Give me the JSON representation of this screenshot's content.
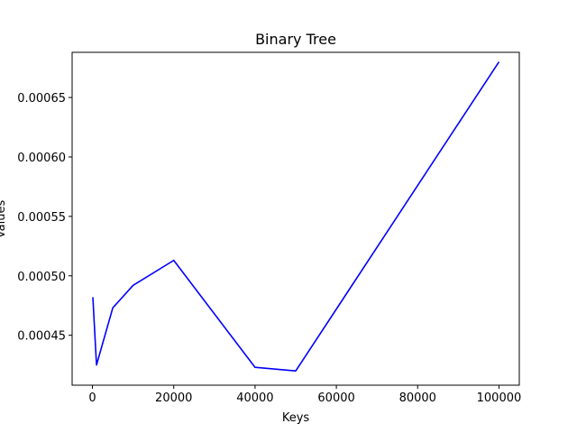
{
  "chart_data": {
    "type": "line",
    "title": "Binary Tree",
    "xlabel": "Keys",
    "ylabel": "Values",
    "xlim": [
      -5000,
      105000
    ],
    "ylim": [
      0.000408,
      0.000688
    ],
    "x_ticks": [
      {
        "value": 0,
        "label": "0"
      },
      {
        "value": 20000,
        "label": "20000"
      },
      {
        "value": 40000,
        "label": "40000"
      },
      {
        "value": 60000,
        "label": "60000"
      },
      {
        "value": 80000,
        "label": "80000"
      },
      {
        "value": 100000,
        "label": "100000"
      }
    ],
    "y_ticks": [
      {
        "value": 0.00045,
        "label": "0.00045"
      },
      {
        "value": 0.0005,
        "label": "0.00050"
      },
      {
        "value": 0.00055,
        "label": "0.00055"
      },
      {
        "value": 0.0006,
        "label": "0.00060"
      },
      {
        "value": 0.00065,
        "label": "0.00065"
      }
    ],
    "grid": false,
    "series": [
      {
        "color": "#0000ff",
        "x": [
          100,
          1000,
          5000,
          10000,
          20000,
          40000,
          50000,
          100000
        ],
        "y": [
          0.000482,
          0.000425,
          0.000473,
          0.000492,
          0.000513,
          0.000423,
          0.00042,
          0.00068
        ]
      }
    ]
  }
}
